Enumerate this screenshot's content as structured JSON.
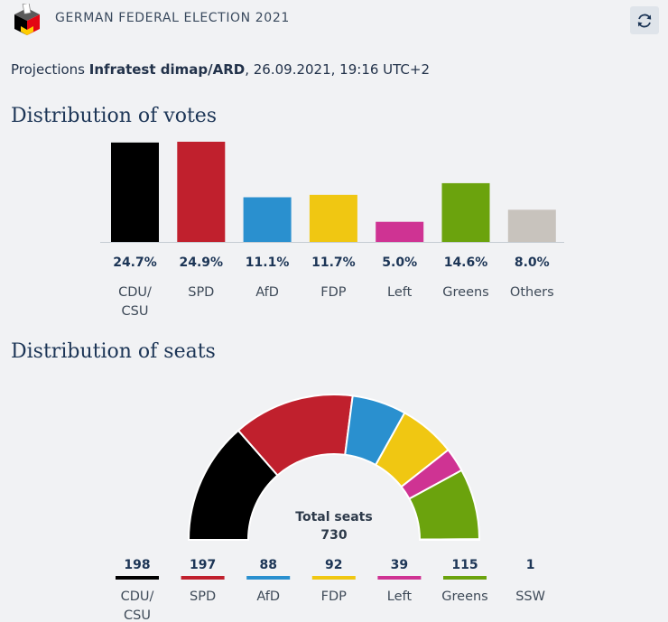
{
  "header": {
    "title": "GERMAN FEDERAL ELECTION 2021",
    "logo_icon": "ballot-box-icon",
    "refresh_icon": "refresh-icon"
  },
  "projection": {
    "prefix": "Projections",
    "source": "Infratest dimap/ARD",
    "datetime": ", 26.09.2021, 19:16 UTC+2"
  },
  "colors": {
    "CDU/CSU": "#000000",
    "SPD": "#c0202d",
    "AfD": "#2a90cf",
    "FDP": "#f0c712",
    "Left": "#cf3393",
    "Greens": "#6ba30d",
    "Others": "#c8c3bd",
    "SSW": "#1f4fa0"
  },
  "chart_data": [
    {
      "type": "bar",
      "title": "Distribution of votes",
      "categories": [
        [
          "CDU/",
          "CSU"
        ],
        [
          "SPD"
        ],
        [
          "AfD"
        ],
        [
          "FDP"
        ],
        [
          "Left"
        ],
        [
          "Greens"
        ],
        [
          "Others"
        ]
      ],
      "keys": [
        "CDU/CSU",
        "SPD",
        "AfD",
        "FDP",
        "Left",
        "Greens",
        "Others"
      ],
      "values": [
        24.7,
        24.9,
        11.1,
        11.7,
        5.0,
        14.6,
        8.0
      ],
      "value_labels": [
        "24.7%",
        "24.9%",
        "11.1%",
        "11.7%",
        "5.0%",
        "14.6%",
        "8.0%"
      ],
      "ylim": [
        0,
        24.9
      ]
    },
    {
      "type": "pie",
      "subtype": "parliament-semicircle",
      "title": "Distribution of seats",
      "categories": [
        [
          "CDU/",
          "CSU"
        ],
        [
          "SPD"
        ],
        [
          "AfD"
        ],
        [
          "FDP"
        ],
        [
          "Left"
        ],
        [
          "Greens"
        ],
        [
          "SSW"
        ]
      ],
      "keys": [
        "CDU/CSU",
        "SPD",
        "AfD",
        "FDP",
        "Left",
        "Greens",
        "SSW"
      ],
      "values": [
        198,
        197,
        88,
        92,
        39,
        115,
        1
      ],
      "value_labels": [
        "198",
        "197",
        "88",
        "92",
        "39",
        "115",
        "1"
      ],
      "total_label": "Total seats",
      "total_value": "730"
    }
  ]
}
